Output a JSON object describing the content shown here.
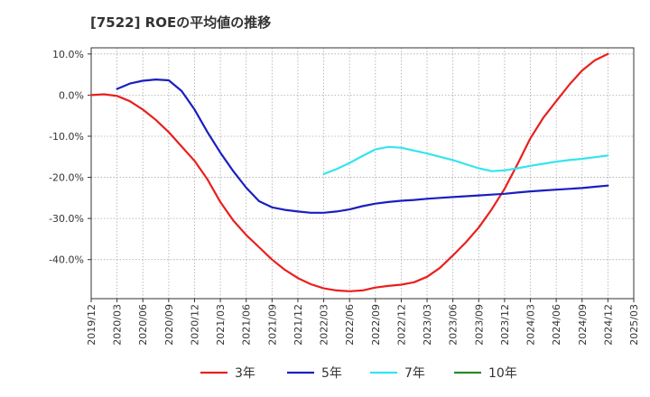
{
  "chart_data": {
    "type": "line",
    "title": "[7522]  ROEの平均値の推移",
    "xlabel": "",
    "ylabel": "",
    "x_ticks": [
      "2019/12",
      "2020/03",
      "2020/06",
      "2020/09",
      "2020/12",
      "2021/03",
      "2021/06",
      "2021/09",
      "2021/12",
      "2022/03",
      "2022/06",
      "2022/09",
      "2022/12",
      "2023/03",
      "2023/06",
      "2023/09",
      "2023/12",
      "2024/03",
      "2024/06",
      "2024/09",
      "2024/12",
      "2025/03"
    ],
    "y_ticks": [
      10,
      0,
      -10,
      -20,
      -30,
      -40
    ],
    "y_tick_labels": [
      "10.0%",
      "0.0%",
      "-10.0%",
      "-20.0%",
      "-30.0%",
      "-40.0%"
    ],
    "ylim": [
      -49.5,
      11.5
    ],
    "xlim": [
      0,
      21
    ],
    "legend_position": "bottom",
    "series": [
      {
        "name": "3年",
        "color": "#e8201e",
        "points": [
          [
            0,
            0.0
          ],
          [
            0.5,
            0.2
          ],
          [
            1,
            -0.2
          ],
          [
            1.5,
            -1.5
          ],
          [
            2,
            -3.5
          ],
          [
            2.5,
            -6
          ],
          [
            3,
            -9
          ],
          [
            3.5,
            -12.5
          ],
          [
            4,
            -16
          ],
          [
            4.5,
            -20.5
          ],
          [
            5,
            -26
          ],
          [
            5.5,
            -30.5
          ],
          [
            6,
            -34
          ],
          [
            6.5,
            -37
          ],
          [
            7,
            -40
          ],
          [
            7.5,
            -42.5
          ],
          [
            8,
            -44.5
          ],
          [
            8.5,
            -46
          ],
          [
            9,
            -47
          ],
          [
            9.5,
            -47.5
          ],
          [
            10,
            -47.7
          ],
          [
            10.5,
            -47.5
          ],
          [
            11,
            -46.8
          ],
          [
            11.5,
            -46.4
          ],
          [
            12,
            -46.1
          ],
          [
            12.5,
            -45.5
          ],
          [
            13,
            -44.2
          ],
          [
            13.5,
            -42
          ],
          [
            14,
            -39
          ],
          [
            14.5,
            -35.8
          ],
          [
            15,
            -32.2
          ],
          [
            15.5,
            -27.8
          ],
          [
            16,
            -22.8
          ],
          [
            16.5,
            -16.8
          ],
          [
            17,
            -10.5
          ],
          [
            17.5,
            -5.5
          ],
          [
            18,
            -1.5
          ],
          [
            18.5,
            2.5
          ],
          [
            19,
            6
          ],
          [
            19.5,
            8.5
          ],
          [
            20,
            10
          ]
        ]
      },
      {
        "name": "5年",
        "color": "#1a1fbf",
        "points": [
          [
            1,
            1.5
          ],
          [
            1.5,
            2.8
          ],
          [
            2,
            3.5
          ],
          [
            2.5,
            3.8
          ],
          [
            3,
            3.6
          ],
          [
            3.5,
            1.0
          ],
          [
            4,
            -3.5
          ],
          [
            4.5,
            -9
          ],
          [
            5,
            -14
          ],
          [
            5.5,
            -18.5
          ],
          [
            6,
            -22.5
          ],
          [
            6.5,
            -25.8
          ],
          [
            7,
            -27.3
          ],
          [
            7.5,
            -27.9
          ],
          [
            8,
            -28.3
          ],
          [
            8.5,
            -28.6
          ],
          [
            9,
            -28.6
          ],
          [
            9.5,
            -28.3
          ],
          [
            10,
            -27.8
          ],
          [
            10.5,
            -27
          ],
          [
            11,
            -26.4
          ],
          [
            11.5,
            -26
          ],
          [
            12,
            -25.7
          ],
          [
            12.5,
            -25.5
          ],
          [
            13,
            -25.2
          ],
          [
            13.5,
            -25
          ],
          [
            14,
            -24.8
          ],
          [
            14.5,
            -24.6
          ],
          [
            15,
            -24.4
          ],
          [
            15.5,
            -24.2
          ],
          [
            16,
            -24
          ],
          [
            16.5,
            -23.7
          ],
          [
            17,
            -23.4
          ],
          [
            17.5,
            -23.2
          ],
          [
            18,
            -23
          ],
          [
            18.5,
            -22.8
          ],
          [
            19,
            -22.6
          ],
          [
            19.5,
            -22.3
          ],
          [
            20,
            -22
          ]
        ]
      },
      {
        "name": "7年",
        "color": "#34e4f0",
        "points": [
          [
            9,
            -19.2
          ],
          [
            9.5,
            -18
          ],
          [
            10,
            -16.5
          ],
          [
            10.5,
            -14.8
          ],
          [
            11,
            -13.2
          ],
          [
            11.5,
            -12.6
          ],
          [
            12,
            -12.8
          ],
          [
            12.5,
            -13.5
          ],
          [
            13,
            -14.2
          ],
          [
            13.5,
            -15
          ],
          [
            14,
            -15.8
          ],
          [
            14.5,
            -16.8
          ],
          [
            15,
            -17.8
          ],
          [
            15.5,
            -18.5
          ],
          [
            16,
            -18.3
          ],
          [
            16.5,
            -17.8
          ],
          [
            17,
            -17.2
          ],
          [
            17.5,
            -16.7
          ],
          [
            18,
            -16.2
          ],
          [
            18.5,
            -15.8
          ],
          [
            19,
            -15.5
          ],
          [
            19.5,
            -15.1
          ],
          [
            20,
            -14.7
          ]
        ]
      },
      {
        "name": "10年",
        "color": "#2a8a2a",
        "points": []
      }
    ]
  }
}
